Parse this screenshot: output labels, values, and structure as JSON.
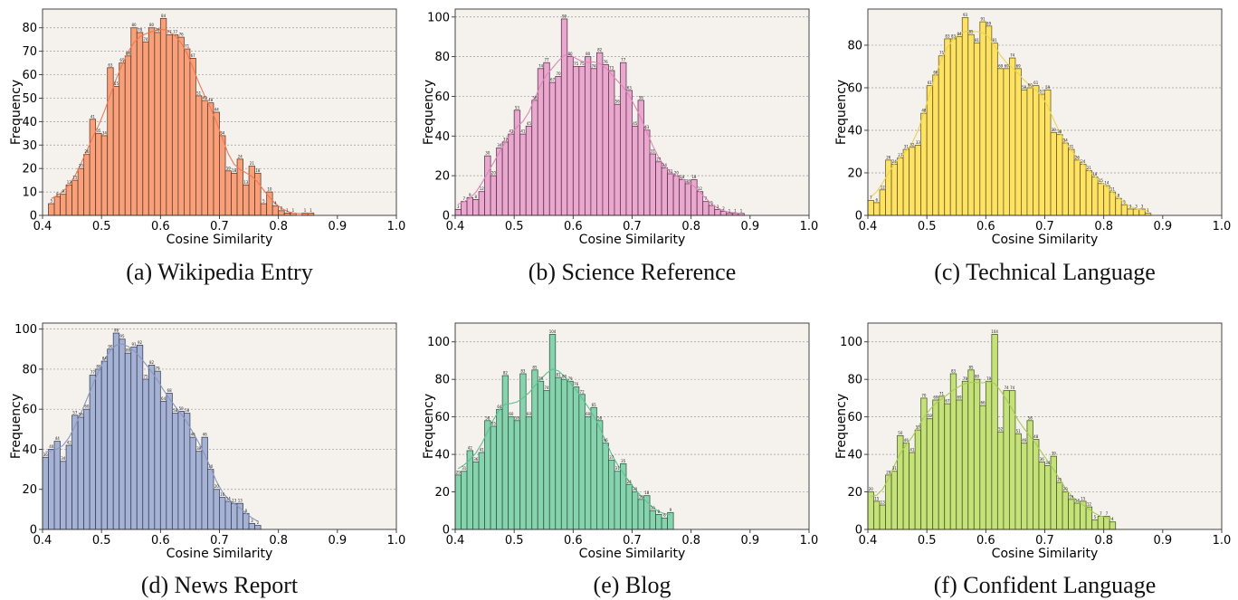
{
  "chart_data": [
    {
      "type": "bar",
      "caption": "(a) Wikipedia Entry",
      "xlabel": "Cosine Similarity",
      "ylabel": "Frequency",
      "xlim": [
        0.4,
        1.0
      ],
      "ylim": [
        0,
        88
      ],
      "xticks": [
        "0.4",
        "0.5",
        "0.6",
        "0.7",
        "0.8",
        "0.9",
        "1.0"
      ],
      "yticks": [
        0,
        10,
        20,
        30,
        40,
        50,
        60,
        70,
        80
      ],
      "bin_start": 0.41,
      "bin_width": 0.01,
      "values": [
        5,
        8,
        9,
        13,
        15,
        20,
        26,
        41,
        35,
        34,
        63,
        55,
        65,
        68,
        80,
        78,
        74,
        80,
        78,
        84,
        77,
        77,
        76,
        71,
        67,
        51,
        49,
        48,
        44,
        34,
        19,
        18,
        24,
        13,
        21,
        18,
        5,
        10,
        4,
        2,
        1,
        1,
        0,
        1,
        1
      ],
      "colors": {
        "fill": "#f7a07a",
        "edge": "#6a3a28",
        "line": "#ee7a55",
        "bg": "#f5f1ec"
      }
    },
    {
      "type": "bar",
      "caption": "(b) Science Reference",
      "xlabel": "Cosine Similarity",
      "ylabel": "Frequency",
      "xlim": [
        0.4,
        1.0
      ],
      "ylim": [
        0,
        104
      ],
      "xticks": [
        "0.4",
        "0.5",
        "0.6",
        "0.7",
        "0.8",
        "0.9",
        "1.0"
      ],
      "yticks": [
        0,
        20,
        40,
        60,
        80,
        100
      ],
      "bin_start": 0.4,
      "bin_width": 0.01,
      "values": [
        3,
        7,
        9,
        8,
        12,
        30,
        20,
        34,
        37,
        41,
        53,
        41,
        45,
        58,
        74,
        77,
        67,
        70,
        99,
        80,
        75,
        75,
        80,
        74,
        82,
        76,
        73,
        56,
        77,
        63,
        45,
        58,
        43,
        31,
        27,
        24,
        21,
        20,
        18,
        16,
        18,
        12,
        7,
        5,
        3,
        2,
        1,
        1,
        1
      ],
      "colors": {
        "fill": "#eba8cf",
        "edge": "#5e3550",
        "line": "#dd86b8",
        "bg": "#f5f1ec"
      }
    },
    {
      "type": "bar",
      "caption": "(c) Technical Language",
      "xlabel": "Cosine Similarity",
      "ylabel": "Frequency",
      "xlim": [
        0.4,
        1.0
      ],
      "ylim": [
        0,
        97
      ],
      "xticks": [
        "0.4",
        "0.5",
        "0.6",
        "0.7",
        "0.8",
        "0.9",
        "1.0"
      ],
      "yticks": [
        0,
        20,
        40,
        60,
        80
      ],
      "bin_start": 0.4,
      "bin_width": 0.01,
      "values": [
        7,
        6,
        12,
        26,
        24,
        27,
        31,
        32,
        33,
        48,
        61,
        66,
        75,
        83,
        83,
        84,
        93,
        85,
        81,
        91,
        89,
        81,
        69,
        69,
        74,
        69,
        59,
        60,
        61,
        57,
        59,
        39,
        38,
        34,
        31,
        26,
        24,
        21,
        18,
        15,
        14,
        11,
        8,
        5,
        3,
        3,
        3,
        1
      ],
      "colors": {
        "fill": "#fde264",
        "edge": "#6e5e1e",
        "line": "#ecd253",
        "bg": "#f5f1ec"
      }
    },
    {
      "type": "bar",
      "caption": "(d) News Report",
      "xlabel": "Cosine Similarity",
      "ylabel": "Frequency",
      "xlim": [
        0.4,
        1.0
      ],
      "ylim": [
        0,
        103
      ],
      "xticks": [
        "0.4",
        "0.5",
        "0.6",
        "0.7",
        "0.8",
        "0.9",
        "1.0"
      ],
      "yticks": [
        0,
        20,
        40,
        60,
        80,
        100
      ],
      "bin_start": 0.4,
      "bin_width": 0.01,
      "values": [
        36,
        40,
        44,
        34,
        42,
        57,
        56,
        60,
        77,
        80,
        84,
        90,
        98,
        95,
        88,
        91,
        92,
        75,
        82,
        79,
        64,
        68,
        58,
        59,
        58,
        46,
        39,
        46,
        30,
        20,
        16,
        14,
        13,
        13,
        8,
        3,
        2
      ],
      "colors": {
        "fill": "#a6b2d4",
        "edge": "#3b4360",
        "line": "#8a97c0",
        "bg": "#f5f1ec"
      }
    },
    {
      "type": "bar",
      "caption": "(e) Blog",
      "xlabel": "Cosine Similarity",
      "ylabel": "Frequency",
      "xlim": [
        0.4,
        1.0
      ],
      "ylim": [
        0,
        110
      ],
      "xticks": [
        "0.4",
        "0.5",
        "0.6",
        "0.7",
        "0.8",
        "0.9",
        "1.0"
      ],
      "yticks": [
        0,
        20,
        40,
        60,
        80,
        100
      ],
      "bin_start": 0.4,
      "bin_width": 0.01,
      "values": [
        29,
        31,
        42,
        36,
        41,
        58,
        55,
        64,
        82,
        60,
        58,
        83,
        60,
        85,
        79,
        74,
        104,
        81,
        80,
        79,
        76,
        72,
        60,
        65,
        58,
        46,
        37,
        31,
        35,
        24,
        20,
        16,
        18,
        10,
        8,
        6,
        9
      ],
      "colors": {
        "fill": "#86d3ad",
        "edge": "#2f5c48",
        "line": "#62bf94",
        "bg": "#f5f1ec"
      }
    },
    {
      "type": "bar",
      "caption": "(f) Confident Language",
      "xlabel": "Cosine Similarity",
      "ylabel": "Frequency",
      "xlim": [
        0.4,
        1.0
      ],
      "ylim": [
        0,
        110
      ],
      "xticks": [
        "0.4",
        "0.5",
        "0.6",
        "0.7",
        "0.8",
        "0.9",
        "1.0"
      ],
      "yticks": [
        0,
        20,
        40,
        60,
        80,
        100
      ],
      "bin_start": 0.4,
      "bin_width": 0.01,
      "values": [
        20,
        15,
        13,
        29,
        31,
        50,
        46,
        41,
        53,
        70,
        59,
        69,
        71,
        67,
        83,
        69,
        79,
        85,
        80,
        66,
        79,
        104,
        52,
        74,
        74,
        51,
        46,
        58,
        48,
        36,
        34,
        39,
        25,
        20,
        16,
        14,
        15,
        12,
        5,
        7,
        7,
        4
      ],
      "colors": {
        "fill": "#c5e17a",
        "edge": "#4c5e22",
        "line": "#a8c95a",
        "bg": "#f5f1ec"
      }
    }
  ]
}
